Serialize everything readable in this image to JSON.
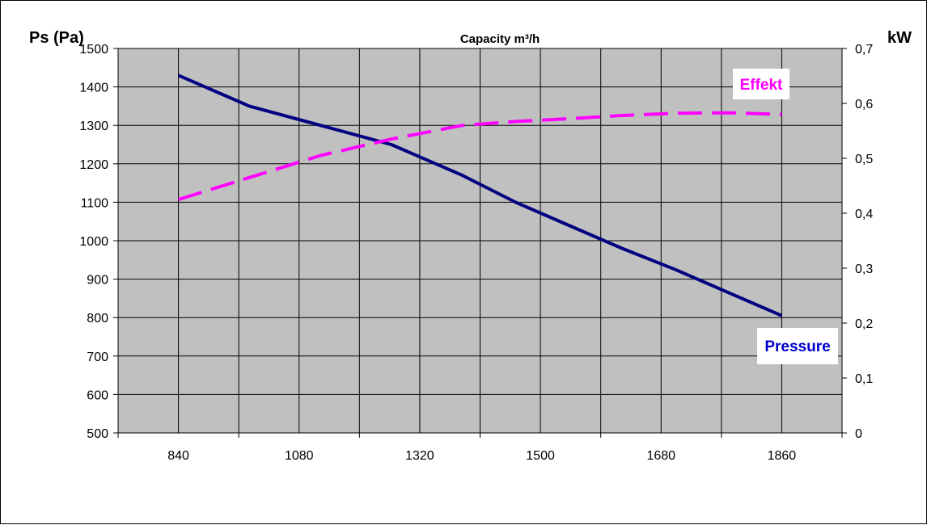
{
  "chart_data": {
    "type": "line",
    "title": "Capacity m³/h",
    "ylabel_left": "Ps (Pa)",
    "ylabel_right": "kW",
    "x_categories": [
      "840",
      "1080",
      "1320",
      "1500",
      "1680",
      "1860"
    ],
    "y_left_ticks": [
      "1500",
      "1400",
      "1300",
      "1200",
      "1100",
      "1000",
      "900",
      "800",
      "700",
      "600",
      "500"
    ],
    "y_left_range": [
      500,
      1500
    ],
    "y_right_ticks": [
      "0,7",
      "0,6",
      "0,5",
      "0,4",
      "0,3",
      "0,2",
      "0,1",
      "0"
    ],
    "y_right_range": [
      0,
      0.7
    ],
    "grid": true,
    "series": [
      {
        "name": "Pressure",
        "axis": "left",
        "color": "#000080",
        "style": "solid",
        "x": [
          840,
          960,
          1080,
          1200,
          1320,
          1410,
          1500,
          1590,
          1680,
          1770,
          1860
        ],
        "values": [
          1430,
          1350,
          1300,
          1250,
          1170,
          1100,
          1040,
          980,
          925,
          865,
          805
        ]
      },
      {
        "name": "Effekt",
        "axis": "right",
        "color": "#ff00ff",
        "style": "dashed",
        "x": [
          840,
          960,
          1080,
          1200,
          1320,
          1410,
          1500,
          1590,
          1680,
          1770,
          1860
        ],
        "values": [
          0.425,
          0.465,
          0.505,
          0.535,
          0.56,
          0.567,
          0.572,
          0.578,
          0.582,
          0.583,
          0.58
        ]
      }
    ]
  }
}
